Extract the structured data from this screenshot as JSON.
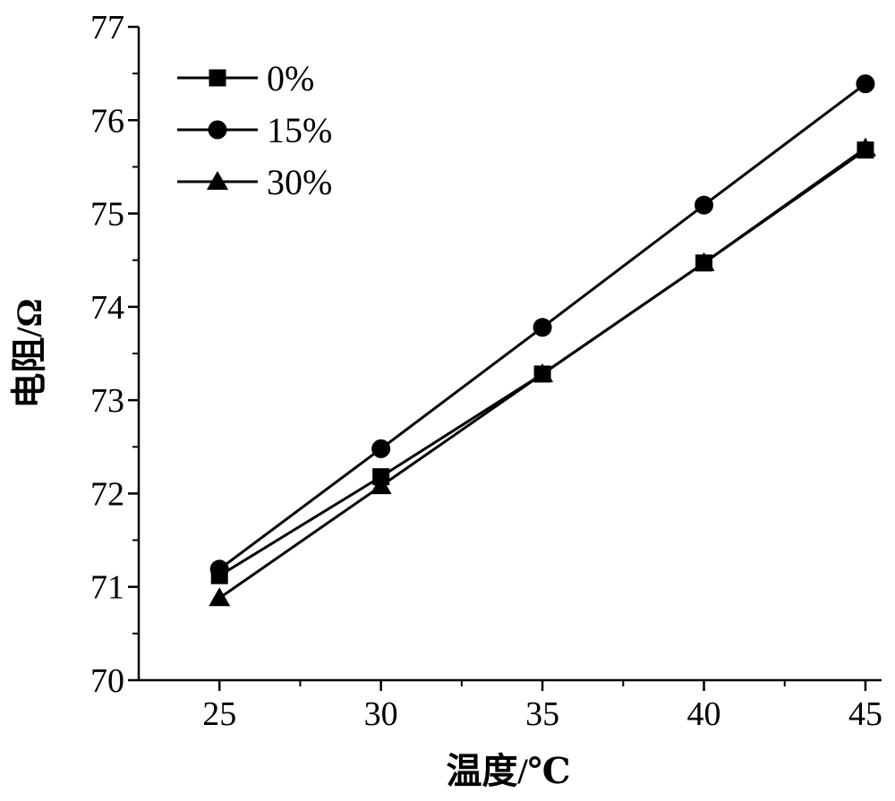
{
  "chart_data": {
    "type": "line",
    "title": "",
    "xlabel": "温度/℃",
    "ylabel": "电阻/Ω",
    "x": [
      25,
      30,
      35,
      40,
      45
    ],
    "xticks": [
      "25",
      "30",
      "35",
      "40",
      "45"
    ],
    "yticks": [
      "70",
      "71",
      "72",
      "73",
      "74",
      "75",
      "76",
      "77"
    ],
    "xlim": [
      22.5,
      45.5
    ],
    "ylim": [
      70,
      77
    ],
    "grid": false,
    "legend_position": "top-left",
    "series": [
      {
        "name": "0%",
        "marker": "square",
        "values": [
          71.12,
          72.18,
          73.28,
          74.47,
          75.68
        ]
      },
      {
        "name": "15%",
        "marker": "circle",
        "values": [
          71.19,
          72.48,
          73.78,
          75.09,
          76.39
        ]
      },
      {
        "name": "30%",
        "marker": "triangle",
        "values": [
          70.88,
          72.08,
          73.28,
          74.47,
          75.7
        ]
      }
    ],
    "line_color": "#000000"
  }
}
